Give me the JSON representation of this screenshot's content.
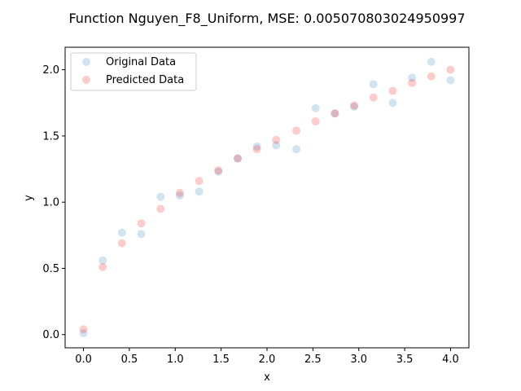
{
  "chart_data": {
    "type": "scatter",
    "title": "Function Nguyen_F8_Uniform, MSE: 0.005070803024950997",
    "xlabel": "x",
    "ylabel": "y",
    "xlim": [
      -0.2,
      4.2
    ],
    "ylim": [
      -0.1,
      2.17
    ],
    "xticks": [
      0.0,
      0.5,
      1.0,
      1.5,
      2.0,
      2.5,
      3.0,
      3.5,
      4.0
    ],
    "xtick_labels": [
      "0.0",
      "0.5",
      "1.0",
      "1.5",
      "2.0",
      "2.5",
      "3.0",
      "3.5",
      "4.0"
    ],
    "yticks": [
      0.0,
      0.5,
      1.0,
      1.5,
      2.0
    ],
    "ytick_labels": [
      "0.0",
      "0.5",
      "1.0",
      "1.5",
      "2.0"
    ],
    "grid": false,
    "legend_position": "top-left",
    "x": [
      0.0,
      0.21,
      0.42,
      0.63,
      0.84,
      1.05,
      1.26,
      1.47,
      1.68,
      1.89,
      2.1,
      2.32,
      2.53,
      2.74,
      2.95,
      3.16,
      3.37,
      3.58,
      3.79,
      4.0
    ],
    "series": [
      {
        "name": "Original Data",
        "color": "#1f77b4",
        "alpha": 0.2,
        "values": [
          0.01,
          0.56,
          0.77,
          0.76,
          1.04,
          1.05,
          1.08,
          1.23,
          1.33,
          1.42,
          1.43,
          1.4,
          1.71,
          1.67,
          1.72,
          1.89,
          1.75,
          1.94,
          2.06,
          1.92
        ]
      },
      {
        "name": "Predicted Data",
        "color": "#ff0000",
        "alpha": 0.2,
        "values": [
          0.04,
          0.51,
          0.69,
          0.84,
          0.95,
          1.07,
          1.16,
          1.24,
          1.33,
          1.4,
          1.47,
          1.54,
          1.61,
          1.67,
          1.73,
          1.79,
          1.84,
          1.9,
          1.95,
          2.0
        ]
      }
    ]
  }
}
